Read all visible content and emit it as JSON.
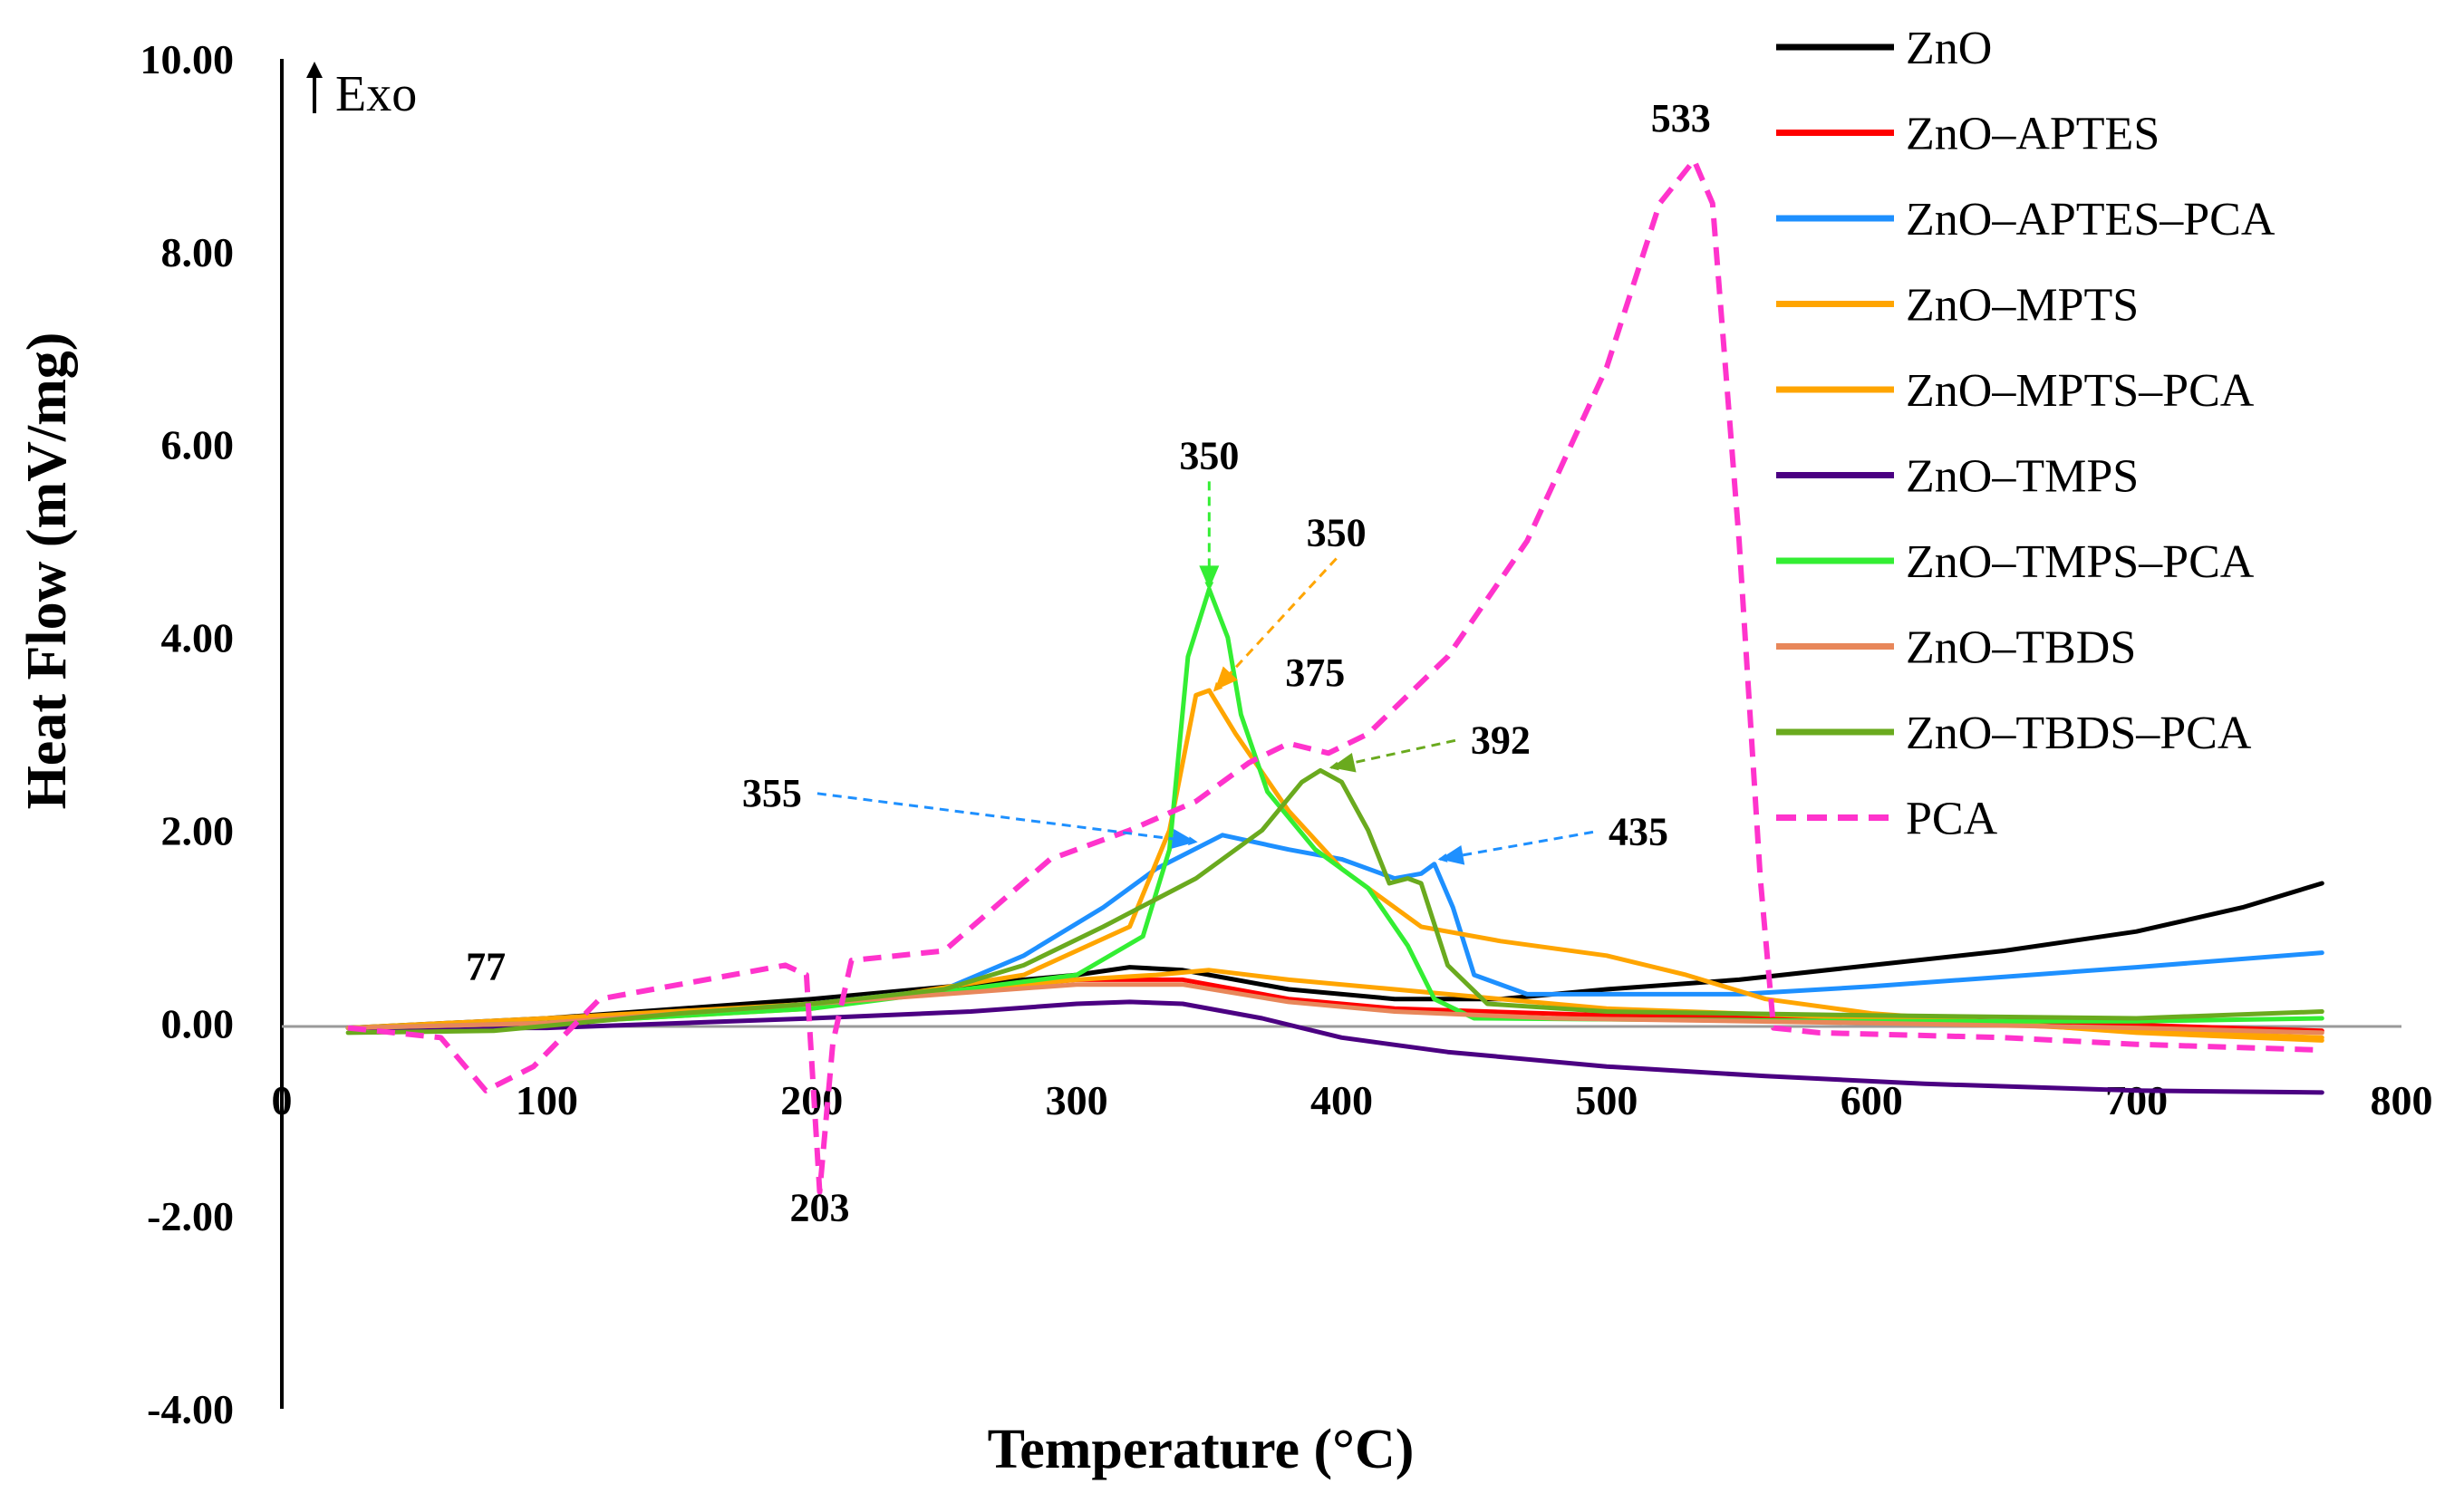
{
  "chart_data": {
    "type": "line",
    "title": "",
    "xlabel": "Temperature (°C)",
    "ylabel": "Heat Flow (mV/mg)",
    "exo_label": "Exo",
    "xlim": [
      0,
      800
    ],
    "ylim": [
      -4,
      10
    ],
    "x_ticks": [
      0,
      100,
      200,
      300,
      400,
      500,
      600,
      700,
      800
    ],
    "x_tick_labels": [
      "0",
      "100",
      "200",
      "300",
      "400",
      "500",
      "600",
      "700",
      "800"
    ],
    "y_ticks": [
      -4,
      -2,
      0,
      2,
      4,
      6,
      8,
      10
    ],
    "y_tick_labels": [
      "-4.00",
      "-2.00",
      "0.00",
      "2.00",
      "4.00",
      "6.00",
      "8.00",
      "10.00"
    ],
    "grid": false,
    "legend_position": "top-right",
    "series": [
      {
        "name": "ZnO",
        "color": "#000000",
        "dash": false,
        "points": [
          [
            25,
            -0.05
          ],
          [
            100,
            0.05
          ],
          [
            200,
            0.25
          ],
          [
            300,
            0.5
          ],
          [
            320,
            0.58
          ],
          [
            340,
            0.55
          ],
          [
            380,
            0.35
          ],
          [
            420,
            0.25
          ],
          [
            460,
            0.25
          ],
          [
            500,
            0.35
          ],
          [
            550,
            0.45
          ],
          [
            600,
            0.6
          ],
          [
            650,
            0.75
          ],
          [
            700,
            0.95
          ],
          [
            740,
            1.2
          ],
          [
            770,
            1.45
          ]
        ]
      },
      {
        "name": "ZnO–APTES",
        "color": "#ff0000",
        "dash": false,
        "points": [
          [
            25,
            -0.05
          ],
          [
            100,
            0.0
          ],
          [
            200,
            0.2
          ],
          [
            300,
            0.45
          ],
          [
            340,
            0.45
          ],
          [
            380,
            0.25
          ],
          [
            420,
            0.15
          ],
          [
            500,
            0.08
          ],
          [
            600,
            0.05
          ],
          [
            700,
            -0.02
          ],
          [
            770,
            -0.08
          ]
        ]
      },
      {
        "name": "ZnO–APTES–PCA",
        "color": "#1e90ff",
        "dash": false,
        "points": [
          [
            25,
            -0.05
          ],
          [
            100,
            0.0
          ],
          [
            200,
            0.2
          ],
          [
            250,
            0.35
          ],
          [
            280,
            0.7
          ],
          [
            310,
            1.2
          ],
          [
            330,
            1.6
          ],
          [
            355,
            1.95
          ],
          [
            380,
            1.8
          ],
          [
            400,
            1.7
          ],
          [
            420,
            1.5
          ],
          [
            430,
            1.55
          ],
          [
            435,
            1.65
          ],
          [
            442,
            1.2
          ],
          [
            450,
            0.5
          ],
          [
            470,
            0.3
          ],
          [
            550,
            0.3
          ],
          [
            600,
            0.38
          ],
          [
            650,
            0.48
          ],
          [
            700,
            0.58
          ],
          [
            770,
            0.73
          ]
        ]
      },
      {
        "name": "ZnO–MPTS",
        "color": "#ffa500",
        "dash": false,
        "points": [
          [
            25,
            -0.05
          ],
          [
            100,
            0.05
          ],
          [
            200,
            0.2
          ],
          [
            300,
            0.45
          ],
          [
            330,
            0.5
          ],
          [
            350,
            0.55
          ],
          [
            380,
            0.45
          ],
          [
            420,
            0.35
          ],
          [
            460,
            0.25
          ],
          [
            500,
            0.15
          ],
          [
            550,
            0.1
          ],
          [
            600,
            0.05
          ],
          [
            700,
            -0.08
          ],
          [
            770,
            -0.15
          ]
        ]
      },
      {
        "name": "ZnO–MPTS–PCA",
        "color": "#ffa500",
        "dash": false,
        "points": [
          [
            25,
            -0.05
          ],
          [
            100,
            0.0
          ],
          [
            200,
            0.15
          ],
          [
            280,
            0.5
          ],
          [
            320,
            1.0
          ],
          [
            335,
            2.0
          ],
          [
            345,
            3.4
          ],
          [
            350,
            3.45
          ],
          [
            360,
            3.0
          ],
          [
            380,
            2.2
          ],
          [
            400,
            1.6
          ],
          [
            430,
            1.0
          ],
          [
            460,
            0.85
          ],
          [
            500,
            0.7
          ],
          [
            530,
            0.5
          ],
          [
            560,
            0.25
          ],
          [
            600,
            0.1
          ],
          [
            650,
            0.0
          ],
          [
            700,
            -0.1
          ],
          [
            770,
            -0.18
          ]
        ]
      },
      {
        "name": "ZnO–TMPS",
        "color": "#4b0082",
        "dash": false,
        "points": [
          [
            25,
            -0.05
          ],
          [
            100,
            -0.05
          ],
          [
            200,
            0.05
          ],
          [
            260,
            0.12
          ],
          [
            300,
            0.2
          ],
          [
            320,
            0.22
          ],
          [
            340,
            0.2
          ],
          [
            370,
            0.05
          ],
          [
            400,
            -0.15
          ],
          [
            440,
            -0.3
          ],
          [
            500,
            -0.45
          ],
          [
            560,
            -0.55
          ],
          [
            620,
            -0.63
          ],
          [
            700,
            -0.7
          ],
          [
            770,
            -0.72
          ]
        ]
      },
      {
        "name": "ZnO–TMPS–PCA",
        "color": "#33ee33",
        "dash": false,
        "points": [
          [
            25,
            -0.05
          ],
          [
            100,
            0.0
          ],
          [
            200,
            0.15
          ],
          [
            300,
            0.5
          ],
          [
            325,
            0.9
          ],
          [
            335,
            1.8
          ],
          [
            342,
            3.8
          ],
          [
            350,
            4.5
          ],
          [
            357,
            4.0
          ],
          [
            362,
            3.2
          ],
          [
            372,
            2.4
          ],
          [
            390,
            1.8
          ],
          [
            410,
            1.4
          ],
          [
            425,
            0.8
          ],
          [
            435,
            0.25
          ],
          [
            450,
            0.05
          ],
          [
            600,
            0.02
          ],
          [
            700,
            0.02
          ],
          [
            770,
            0.05
          ]
        ]
      },
      {
        "name": "ZnO–TBDS",
        "color": "#e8875a",
        "dash": false,
        "points": [
          [
            25,
            -0.05
          ],
          [
            100,
            0.0
          ],
          [
            200,
            0.2
          ],
          [
            300,
            0.4
          ],
          [
            340,
            0.4
          ],
          [
            380,
            0.22
          ],
          [
            420,
            0.12
          ],
          [
            480,
            0.05
          ],
          [
            600,
            0.0
          ],
          [
            700,
            -0.05
          ],
          [
            770,
            -0.1
          ]
        ]
      },
      {
        "name": "ZnO–TBDS–PCA",
        "color": "#6aaa1e",
        "dash": false,
        "points": [
          [
            25,
            -0.1
          ],
          [
            80,
            -0.08
          ],
          [
            150,
            0.1
          ],
          [
            200,
            0.2
          ],
          [
            250,
            0.35
          ],
          [
            280,
            0.6
          ],
          [
            310,
            1.0
          ],
          [
            345,
            1.5
          ],
          [
            370,
            2.0
          ],
          [
            385,
            2.5
          ],
          [
            392,
            2.62
          ],
          [
            400,
            2.5
          ],
          [
            410,
            2.0
          ],
          [
            418,
            1.45
          ],
          [
            425,
            1.5
          ],
          [
            430,
            1.45
          ],
          [
            440,
            0.6
          ],
          [
            455,
            0.2
          ],
          [
            500,
            0.12
          ],
          [
            600,
            0.08
          ],
          [
            700,
            0.05
          ],
          [
            770,
            0.12
          ]
        ]
      },
      {
        "name": "PCA",
        "color": "#ff33cc",
        "dash": true,
        "points": [
          [
            25,
            -0.05
          ],
          [
            60,
            -0.15
          ],
          [
            77,
            -0.7
          ],
          [
            95,
            -0.45
          ],
          [
            120,
            0.25
          ],
          [
            150,
            0.4
          ],
          [
            190,
            0.6
          ],
          [
            198,
            0.5
          ],
          [
            203,
            -1.75
          ],
          [
            208,
            -0.2
          ],
          [
            215,
            0.65
          ],
          [
            250,
            0.75
          ],
          [
            290,
            1.7
          ],
          [
            320,
            2.0
          ],
          [
            345,
            2.3
          ],
          [
            365,
            2.7
          ],
          [
            380,
            2.9
          ],
          [
            395,
            2.8
          ],
          [
            410,
            3.0
          ],
          [
            440,
            3.8
          ],
          [
            470,
            5.0
          ],
          [
            500,
            6.8
          ],
          [
            520,
            8.5
          ],
          [
            533,
            8.95
          ],
          [
            540,
            8.5
          ],
          [
            550,
            5.0
          ],
          [
            558,
            1.5
          ],
          [
            563,
            -0.05
          ],
          [
            580,
            -0.1
          ],
          [
            650,
            -0.15
          ],
          [
            700,
            -0.22
          ],
          [
            770,
            -0.28
          ]
        ]
      }
    ],
    "annotations": [
      {
        "label": "77",
        "x": 77,
        "y": 0.45,
        "arrow": false
      },
      {
        "label": "203",
        "x": 203,
        "y": -2.05,
        "arrow": false
      },
      {
        "label": "350",
        "x": 350,
        "y": 5.75,
        "arrow": true,
        "color": "#33ee33",
        "to": [
          350,
          4.5
        ]
      },
      {
        "label": "350",
        "x": 398,
        "y": 4.95,
        "arrow": true,
        "color": "#ffa500",
        "to": [
          352,
          3.45
        ]
      },
      {
        "label": "375",
        "x": 390,
        "y": 3.5,
        "arrow": false
      },
      {
        "label": "392",
        "x": 460,
        "y": 2.8,
        "arrow": true,
        "color": "#6aaa1e",
        "to": [
          396,
          2.65
        ]
      },
      {
        "label": "355",
        "x": 185,
        "y": 2.25,
        "arrow": true,
        "color": "#1e90ff",
        "to": [
          345,
          1.88
        ]
      },
      {
        "label": "435",
        "x": 512,
        "y": 1.85,
        "arrow": true,
        "color": "#1e90ff",
        "to": [
          437,
          1.7
        ]
      },
      {
        "label": "533",
        "x": 528,
        "y": 9.25,
        "arrow": false
      }
    ]
  }
}
